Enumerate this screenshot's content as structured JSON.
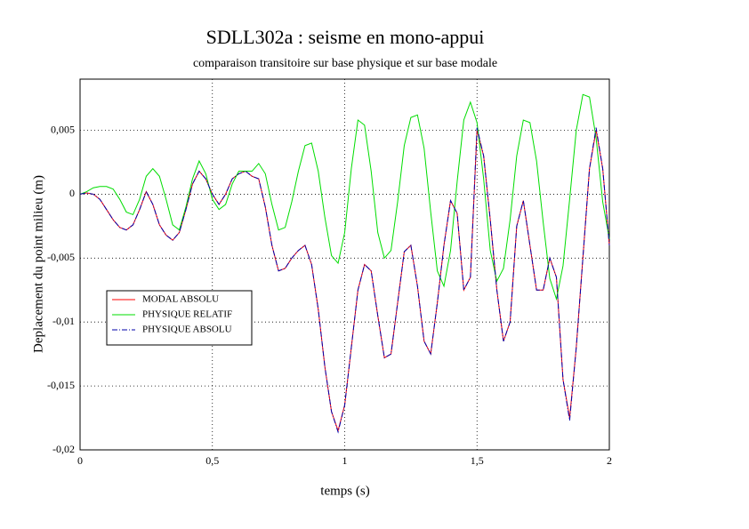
{
  "chart_data": {
    "type": "line",
    "title": "SDLL302a : seisme en mono-appui",
    "subtitle": "comparaison transitoire sur base physique et sur base modale",
    "x_label": "temps (s)",
    "y_label": "Deplacement du point milieu (m)",
    "xlim": [
      0,
      2
    ],
    "ylim": [
      -0.02,
      0.009
    ],
    "xticks": [
      0,
      {
        "value": 0.5,
        "label": "0,5"
      },
      1,
      {
        "value": 1.5,
        "label": "1,5"
      },
      2
    ],
    "yticks": [
      {
        "value": -0.02,
        "label": "-0,02"
      },
      {
        "value": -0.015,
        "label": "-0,015"
      },
      {
        "value": -0.01,
        "label": "-0,01"
      },
      {
        "value": -0.005,
        "label": "-0,005"
      },
      0,
      {
        "value": 0.005,
        "label": "0,005"
      }
    ],
    "grid": true,
    "legend": "left",
    "x": [
      0,
      0.025,
      0.05,
      0.075,
      0.1,
      0.125,
      0.15,
      0.175,
      0.2,
      0.225,
      0.25,
      0.275,
      0.3,
      0.325,
      0.35,
      0.375,
      0.4,
      0.425,
      0.45,
      0.475,
      0.5,
      0.525,
      0.55,
      0.575,
      0.6,
      0.625,
      0.65,
      0.675,
      0.7,
      0.725,
      0.75,
      0.775,
      0.8,
      0.825,
      0.85,
      0.875,
      0.9,
      0.925,
      0.95,
      0.975,
      1,
      1.025,
      1.05,
      1.075,
      1.1,
      1.125,
      1.15,
      1.175,
      1.2,
      1.225,
      1.25,
      1.275,
      1.3,
      1.325,
      1.35,
      1.375,
      1.4,
      1.425,
      1.45,
      1.475,
      1.5,
      1.525,
      1.55,
      1.575,
      1.6,
      1.625,
      1.65,
      1.675,
      1.7,
      1.725,
      1.75,
      1.775,
      1.8,
      1.825,
      1.85,
      1.875,
      1.9,
      1.925,
      1.95,
      1.975,
      2
    ],
    "series": [
      {
        "name": "MODAL ABSOLU",
        "color": "#ff0000",
        "dash": "solid",
        "values": [
          0,
          0.0001,
          0,
          -0.0004,
          -0.0012,
          -0.002,
          -0.0026,
          -0.0028,
          -0.0024,
          -0.0012,
          0.0002,
          -0.0008,
          -0.0024,
          -0.0032,
          -0.0036,
          -0.003,
          -0.0012,
          0.0008,
          0.0018,
          0.0012,
          0,
          -0.0008,
          0,
          0.0012,
          0.0016,
          0.0018,
          0.0014,
          0.0012,
          -0.001,
          -0.004,
          -0.006,
          -0.0058,
          -0.005,
          -0.0044,
          -0.004,
          -0.0055,
          -0.009,
          -0.0135,
          -0.017,
          -0.0185,
          -0.0165,
          -0.012,
          -0.0075,
          -0.0055,
          -0.006,
          -0.0095,
          -0.0128,
          -0.0125,
          -0.0085,
          -0.0045,
          -0.004,
          -0.0072,
          -0.0115,
          -0.0125,
          -0.0085,
          -0.004,
          -0.0005,
          -0.0015,
          -0.0075,
          -0.0065,
          0.005,
          0.003,
          -0.002,
          -0.0075,
          -0.0115,
          -0.01,
          -0.0025,
          -0.0005,
          -0.004,
          -0.0075,
          -0.0075,
          -0.005,
          -0.0065,
          -0.0145,
          -0.0175,
          -0.012,
          -0.005,
          0.002,
          0.005,
          0.002,
          -0.004
        ]
      },
      {
        "name": "PHYSIQUE RELATIF",
        "color": "#00dd00",
        "dash": "solid",
        "values": [
          0,
          0.0002,
          0.0005,
          0.0006,
          0.0006,
          0.0004,
          -0.0004,
          -0.0014,
          -0.0016,
          -0.0004,
          0.0014,
          0.002,
          0.0014,
          -0.0004,
          -0.0024,
          -0.0028,
          -0.001,
          0.0012,
          0.0026,
          0.0016,
          -0.0004,
          -0.0012,
          -0.0008,
          0.0008,
          0.0018,
          0.0018,
          0.0018,
          0.0024,
          0.0016,
          -0.0008,
          -0.0028,
          -0.0026,
          -0.0006,
          0.0018,
          0.0038,
          0.004,
          0.0018,
          -0.0018,
          -0.0048,
          -0.0054,
          -0.003,
          0.002,
          0.0058,
          0.0054,
          0.0018,
          -0.003,
          -0.005,
          -0.0044,
          -0.0006,
          0.0038,
          0.006,
          0.0062,
          0.0036,
          -0.0014,
          -0.006,
          -0.0072,
          -0.0044,
          0.001,
          0.0058,
          0.0072,
          0.0056,
          0.0012,
          -0.0044,
          -0.0068,
          -0.0058,
          -0.002,
          0.003,
          0.0058,
          0.0056,
          0.0026,
          -0.0022,
          -0.0066,
          -0.0082,
          -0.0056,
          -0.0004,
          0.005,
          0.0078,
          0.0076,
          0.0044,
          -0.0006,
          -0.0035
        ]
      },
      {
        "name": "PHYSIQUE ABSOLU",
        "color": "#0000aa",
        "dash": "dashdot",
        "values": [
          0,
          0.0001,
          0,
          -0.0004,
          -0.0012,
          -0.002,
          -0.0026,
          -0.0028,
          -0.0024,
          -0.0012,
          0.0002,
          -0.0008,
          -0.0024,
          -0.0032,
          -0.0036,
          -0.003,
          -0.0012,
          0.0008,
          0.0018,
          0.0012,
          0,
          -0.0008,
          0,
          0.0012,
          0.0016,
          0.0018,
          0.0014,
          0.0012,
          -0.001,
          -0.004,
          -0.006,
          -0.0058,
          -0.005,
          -0.0044,
          -0.004,
          -0.0055,
          -0.009,
          -0.0135,
          -0.017,
          -0.0186,
          -0.0165,
          -0.012,
          -0.0075,
          -0.0055,
          -0.006,
          -0.0095,
          -0.0128,
          -0.0125,
          -0.0085,
          -0.0045,
          -0.004,
          -0.0072,
          -0.0115,
          -0.0125,
          -0.0085,
          -0.004,
          -0.0005,
          -0.0015,
          -0.0075,
          -0.0065,
          0.0052,
          0.003,
          -0.002,
          -0.0075,
          -0.0115,
          -0.01,
          -0.0025,
          -0.0005,
          -0.004,
          -0.0075,
          -0.0075,
          -0.005,
          -0.0065,
          -0.0145,
          -0.0177,
          -0.012,
          -0.005,
          0.002,
          0.0052,
          0.002,
          -0.004
        ]
      }
    ]
  }
}
